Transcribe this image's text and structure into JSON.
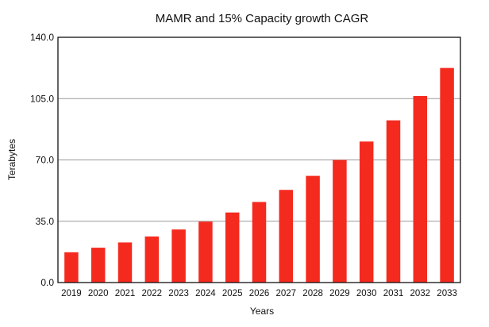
{
  "chart_data": {
    "type": "bar",
    "title": "MAMR and 15% Capacity growth CAGR",
    "xlabel": "Years",
    "ylabel": "Terabytes",
    "ylim": [
      0,
      140
    ],
    "yticks": [
      "0.0",
      "35.0",
      "70.0",
      "105.0",
      "140.0"
    ],
    "grid": true,
    "bar_color": "#f52a1f",
    "categories": [
      "2019",
      "2020",
      "2021",
      "2022",
      "2023",
      "2024",
      "2025",
      "2026",
      "2027",
      "2028",
      "2029",
      "2030",
      "2031",
      "2032",
      "2033"
    ],
    "values": [
      17.3,
      19.9,
      22.9,
      26.3,
      30.3,
      34.8,
      40.0,
      46.0,
      52.9,
      60.9,
      70.0,
      80.5,
      92.6,
      106.5,
      122.5
    ]
  }
}
